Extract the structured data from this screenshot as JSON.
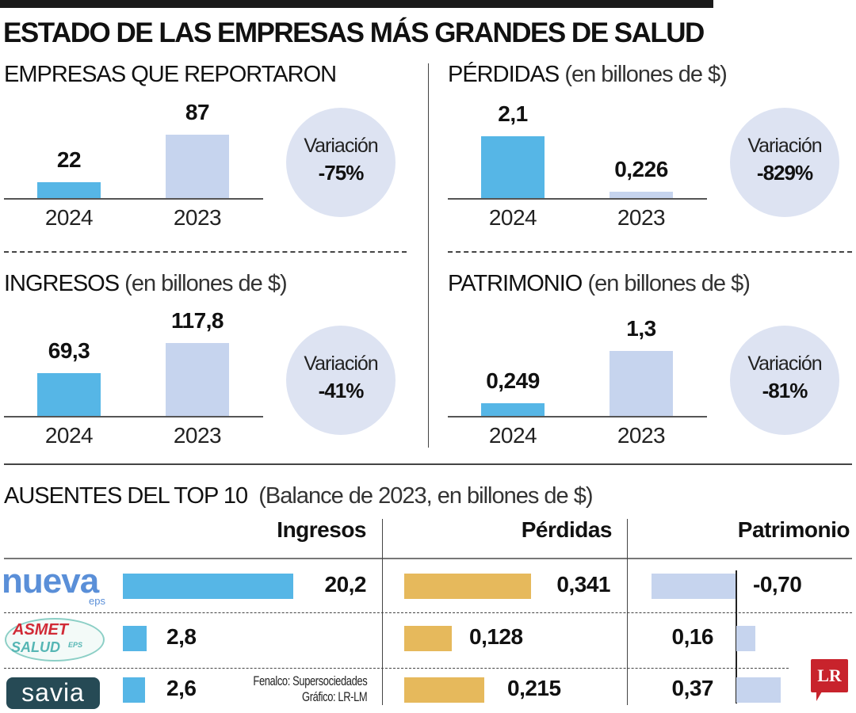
{
  "title": "ESTADO DE LAS EMPRESAS MÁS GRANDES DE SALUD",
  "colors": {
    "y2024": "#56b6e6",
    "y2023": "#c6d4ee",
    "perdidas": "#e6b95c",
    "circle": "#dde3f2"
  },
  "chart_data": [
    {
      "type": "bar",
      "title": "EMPRESAS QUE REPORTARON",
      "subtitle": "",
      "categories": [
        "2024",
        "2023"
      ],
      "values": [
        22,
        87
      ],
      "labels": [
        "22",
        "87"
      ],
      "variation_label": "Variación",
      "variation": "-75%"
    },
    {
      "type": "bar",
      "title": "PÉRDIDAS",
      "subtitle": "(en billones de $)",
      "categories": [
        "2024",
        "2023"
      ],
      "values": [
        2.1,
        0.226
      ],
      "labels": [
        "2,1",
        "0,226"
      ],
      "variation_label": "Variación",
      "variation": "-829%"
    },
    {
      "type": "bar",
      "title": "INGRESOS",
      "subtitle": "(en billones de $)",
      "categories": [
        "2024",
        "2023"
      ],
      "values": [
        69.3,
        117.8
      ],
      "labels": [
        "69,3",
        "117,8"
      ],
      "variation_label": "Variación",
      "variation": "-41%"
    },
    {
      "type": "bar",
      "title": "PATRIMONIO",
      "subtitle": "(en billones de $)",
      "categories": [
        "2024",
        "2023"
      ],
      "values": [
        0.249,
        1.3
      ],
      "labels": [
        "0,249",
        "1,3"
      ],
      "variation_label": "Variación",
      "variation": "-81%"
    },
    {
      "type": "bar",
      "title": "AUSENTES DEL TOP 10",
      "subtitle": "(Balance de 2023, en billones de $)",
      "columns": [
        "Ingresos",
        "Pérdidas",
        "Patrimonio"
      ],
      "companies": [
        "Nueva EPS",
        "Asmet Salud EPS",
        "Savia"
      ],
      "series": [
        {
          "name": "Ingresos",
          "values": [
            20.2,
            2.8,
            2.6
          ],
          "labels": [
            "20,2",
            "2,8",
            "2,6"
          ]
        },
        {
          "name": "Pérdidas",
          "values": [
            0.341,
            0.128,
            0.215
          ],
          "labels": [
            "0,341",
            "0,128",
            "0,215"
          ]
        },
        {
          "name": "Patrimonio",
          "values": [
            -0.7,
            0.16,
            0.37
          ],
          "labels": [
            "-0,70",
            "0,16",
            "0,37"
          ]
        }
      ]
    }
  ],
  "logos": {
    "nueva": "nueva",
    "nueva_sub": "eps",
    "asmet1": "ASMET",
    "asmet2": "SALUD",
    "asmet_sub": "EPS",
    "savia": "savia",
    "lr": "LR"
  },
  "source": "Fenalco: Supersociedades",
  "credit": "Gráfico: LR-LM"
}
